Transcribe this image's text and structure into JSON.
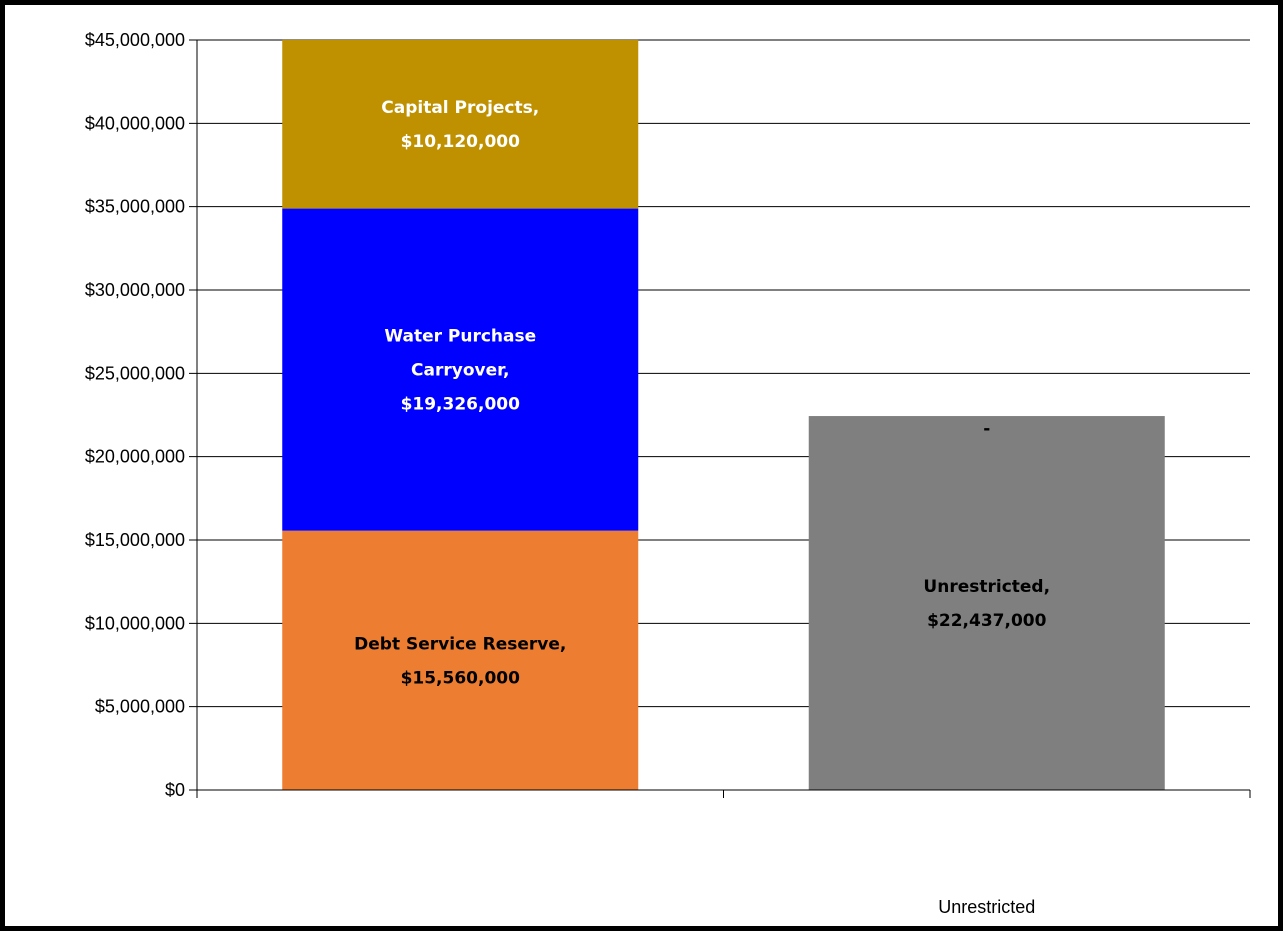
{
  "chart_data": {
    "type": "bar",
    "stacked": true,
    "categories": [
      "",
      "Unrestricted"
    ],
    "ylim": [
      0,
      45000000
    ],
    "yticks": [
      0,
      5000000,
      10000000,
      15000000,
      20000000,
      25000000,
      30000000,
      35000000,
      40000000,
      45000000
    ],
    "ytick_labels": [
      "$0",
      "$5,000,000",
      "$10,000,000",
      "$15,000,000",
      "$20,000,000",
      "$25,000,000",
      "$30,000,000",
      "$35,000,000",
      "$40,000,000",
      "$45,000,000"
    ],
    "grid": true,
    "legend": "none",
    "series": [
      {
        "name": "Debt Service Reserve",
        "color": "#ED7D31",
        "label_color": "#000000",
        "values": [
          15560000,
          0
        ],
        "data_labels": [
          [
            "Debt Service Reserve,",
            "$15,560,000"
          ],
          []
        ]
      },
      {
        "name": "Water Purchase Carryover",
        "color": "#0000FF",
        "label_color": "#FFFFFF",
        "values": [
          19326000,
          0
        ],
        "data_labels": [
          [
            "Water Purchase",
            "Carryover,",
            "$19,326,000"
          ],
          []
        ]
      },
      {
        "name": "Capital Projects",
        "color": "#BF9000",
        "label_color": "#FFFFFF",
        "values": [
          10120000,
          0
        ],
        "data_labels": [
          [
            "Capital Projects,",
            "$10,120,000"
          ],
          []
        ]
      },
      {
        "name": "Unrestricted",
        "color": "#7F7F7F",
        "label_color": "#000000",
        "values": [
          0,
          22437000
        ],
        "data_labels": [
          [],
          [
            "Unrestricted,",
            "$22,437,000"
          ]
        ]
      }
    ],
    "extra_labels": [
      {
        "text": "-",
        "category_index": 1,
        "value": 22437000
      }
    ]
  }
}
